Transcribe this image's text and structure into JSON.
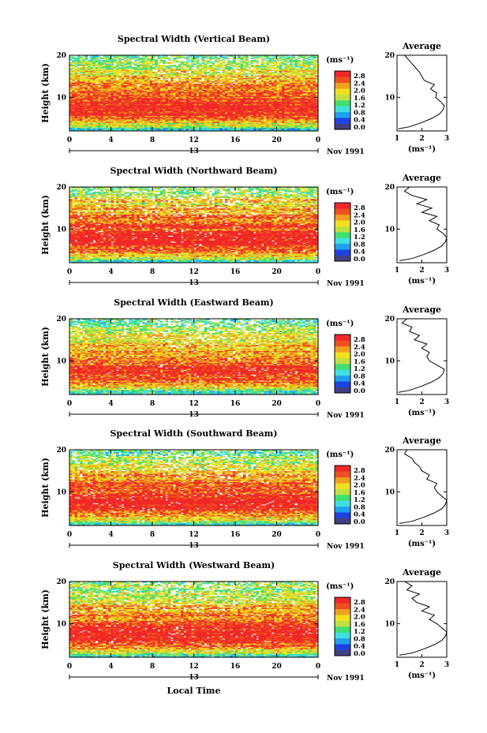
{
  "figure": {
    "date_label": "Nov 1991",
    "xlabel": "Local Time",
    "average_title": "Average",
    "unit_label": "(ms⁻¹)",
    "day_label": "13"
  },
  "colorbar": {
    "ticks": [
      "2.8",
      "2.4",
      "2.0",
      "1.6",
      "1.2",
      "0.8",
      "0.4",
      "0.0"
    ],
    "range": [
      0.0,
      3.0
    ],
    "colors": [
      "#404080",
      "#2040e0",
      "#20a0f0",
      "#40e0e0",
      "#40e070",
      "#c0e040",
      "#f0e020",
      "#f0a020",
      "#f05020",
      "#f02828"
    ]
  },
  "chart_data": [
    {
      "type": "heatmap",
      "title": "Spectral Width (Vertical Beam)",
      "ylabel": "Height (km)",
      "x_ticks": [
        "0",
        "4",
        "8",
        "12",
        "16",
        "20",
        "0"
      ],
      "y_ticks": [
        "20",
        "10"
      ],
      "xlim": [
        0,
        24
      ],
      "ylim": [
        2,
        20
      ],
      "average_profile": {
        "xlim": [
          1,
          3
        ],
        "x_ticks": [
          "1",
          "2",
          "3"
        ],
        "height": [
          2.5,
          3,
          4,
          5,
          6,
          7,
          8,
          9,
          10,
          11,
          12,
          13,
          14,
          15,
          16,
          17,
          18,
          19,
          20
        ],
        "value": [
          1.05,
          1.5,
          2.0,
          2.4,
          2.7,
          2.85,
          2.9,
          2.75,
          2.55,
          2.6,
          2.35,
          2.5,
          2.1,
          2.0,
          1.9,
          1.75,
          1.6,
          1.45,
          1.3
        ]
      }
    },
    {
      "type": "heatmap",
      "title": "Spectral Width (Northward Beam)",
      "ylabel": "Height (km)",
      "x_ticks": [
        "0",
        "4",
        "8",
        "12",
        "16",
        "20",
        "0"
      ],
      "y_ticks": [
        "20",
        "10"
      ],
      "xlim": [
        0,
        24
      ],
      "ylim": [
        2,
        20
      ],
      "average_profile": {
        "xlim": [
          1,
          3
        ],
        "x_ticks": [
          "1",
          "2",
          "3"
        ],
        "height": [
          2.5,
          3,
          4,
          5,
          6,
          7,
          8,
          9,
          10,
          11,
          12,
          13,
          14,
          15,
          16,
          17,
          18,
          19,
          20
        ],
        "value": [
          1.1,
          1.6,
          2.1,
          2.5,
          2.8,
          2.95,
          3.0,
          2.85,
          2.6,
          2.7,
          2.3,
          2.6,
          2.0,
          2.4,
          1.8,
          2.2,
          1.6,
          1.3,
          1.5
        ]
      }
    },
    {
      "type": "heatmap",
      "title": "Spectral Width (Eastward Beam)",
      "ylabel": "Height (km)",
      "x_ticks": [
        "0",
        "4",
        "8",
        "12",
        "16",
        "20",
        "0"
      ],
      "y_ticks": [
        "20",
        "10"
      ],
      "xlim": [
        0,
        24
      ],
      "ylim": [
        2,
        20
      ],
      "average_profile": {
        "xlim": [
          1,
          3
        ],
        "x_ticks": [
          "1",
          "2",
          "3"
        ],
        "height": [
          2.5,
          3,
          4,
          5,
          6,
          7,
          8,
          9,
          10,
          11,
          12,
          13,
          14,
          15,
          16,
          17,
          18,
          19,
          20
        ],
        "value": [
          1.05,
          1.5,
          2.0,
          2.4,
          2.7,
          2.85,
          2.9,
          2.6,
          2.3,
          2.2,
          2.3,
          2.0,
          2.2,
          1.7,
          1.9,
          1.5,
          1.6,
          1.2,
          1.4
        ]
      }
    },
    {
      "type": "heatmap",
      "title": "Spectral Width (Southward Beam)",
      "ylabel": "Height (km)",
      "x_ticks": [
        "0",
        "4",
        "8",
        "12",
        "16",
        "20",
        "0"
      ],
      "y_ticks": [
        "20",
        "10"
      ],
      "xlim": [
        0,
        24
      ],
      "ylim": [
        2,
        20
      ],
      "average_profile": {
        "xlim": [
          1,
          3
        ],
        "x_ticks": [
          "1",
          "2",
          "3"
        ],
        "height": [
          2.5,
          3,
          4,
          5,
          6,
          7,
          8,
          9,
          10,
          11,
          12,
          13,
          14,
          15,
          16,
          17,
          18,
          19,
          20
        ],
        "value": [
          1.1,
          1.6,
          2.1,
          2.5,
          2.8,
          2.95,
          3.0,
          2.8,
          2.6,
          2.5,
          2.6,
          2.2,
          2.3,
          2.0,
          1.9,
          1.7,
          1.6,
          1.3,
          1.4
        ]
      }
    },
    {
      "type": "heatmap",
      "title": "Spectral Width (Westward Beam)",
      "ylabel": "Height (km)",
      "x_ticks": [
        "0",
        "4",
        "8",
        "12",
        "16",
        "20",
        "0"
      ],
      "y_ticks": [
        "20",
        "10"
      ],
      "xlim": [
        0,
        24
      ],
      "ylim": [
        2,
        20
      ],
      "average_profile": {
        "xlim": [
          1,
          3
        ],
        "x_ticks": [
          "1",
          "2",
          "3"
        ],
        "height": [
          2.5,
          3,
          4,
          5,
          6,
          7,
          8,
          9,
          10,
          11,
          12,
          13,
          14,
          15,
          16,
          17,
          18,
          19,
          20
        ],
        "value": [
          1.1,
          1.6,
          2.1,
          2.5,
          2.8,
          2.95,
          3.0,
          2.8,
          2.6,
          2.3,
          2.5,
          2.0,
          2.3,
          1.8,
          1.6,
          1.9,
          1.4,
          1.6,
          1.3
        ]
      }
    }
  ]
}
